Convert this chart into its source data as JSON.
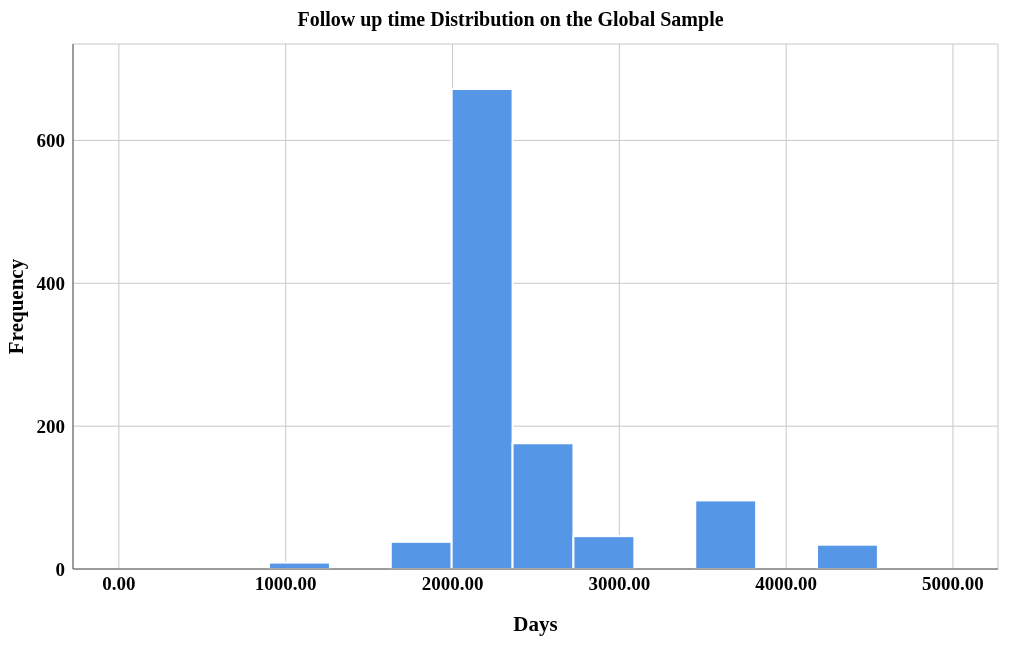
{
  "chart_data": {
    "type": "histogram",
    "title": "Follow up time Distribution on the Global Sample",
    "xlabel": "Days",
    "ylabel": "Frequency",
    "bins": [
      900,
      1265,
      1630,
      1995,
      2360,
      2725,
      3090,
      3455,
      3820,
      4185,
      4550
    ],
    "values": [
      9,
      0,
      38,
      672,
      176,
      46,
      0,
      96,
      0,
      34
    ],
    "color": "#5596e6",
    "xlim": [
      -275,
      5270
    ],
    "ylim": [
      0,
      735
    ],
    "xticks": [
      {
        "value": 0,
        "label": "0.00"
      },
      {
        "value": 1000,
        "label": "1000.00"
      },
      {
        "value": 2000,
        "label": "2000.00"
      },
      {
        "value": 3000,
        "label": "3000.00"
      },
      {
        "value": 4000,
        "label": "4000.00"
      },
      {
        "value": 5000,
        "label": "5000.00"
      }
    ],
    "yticks": [
      0,
      200,
      400,
      600
    ],
    "grid": true
  }
}
